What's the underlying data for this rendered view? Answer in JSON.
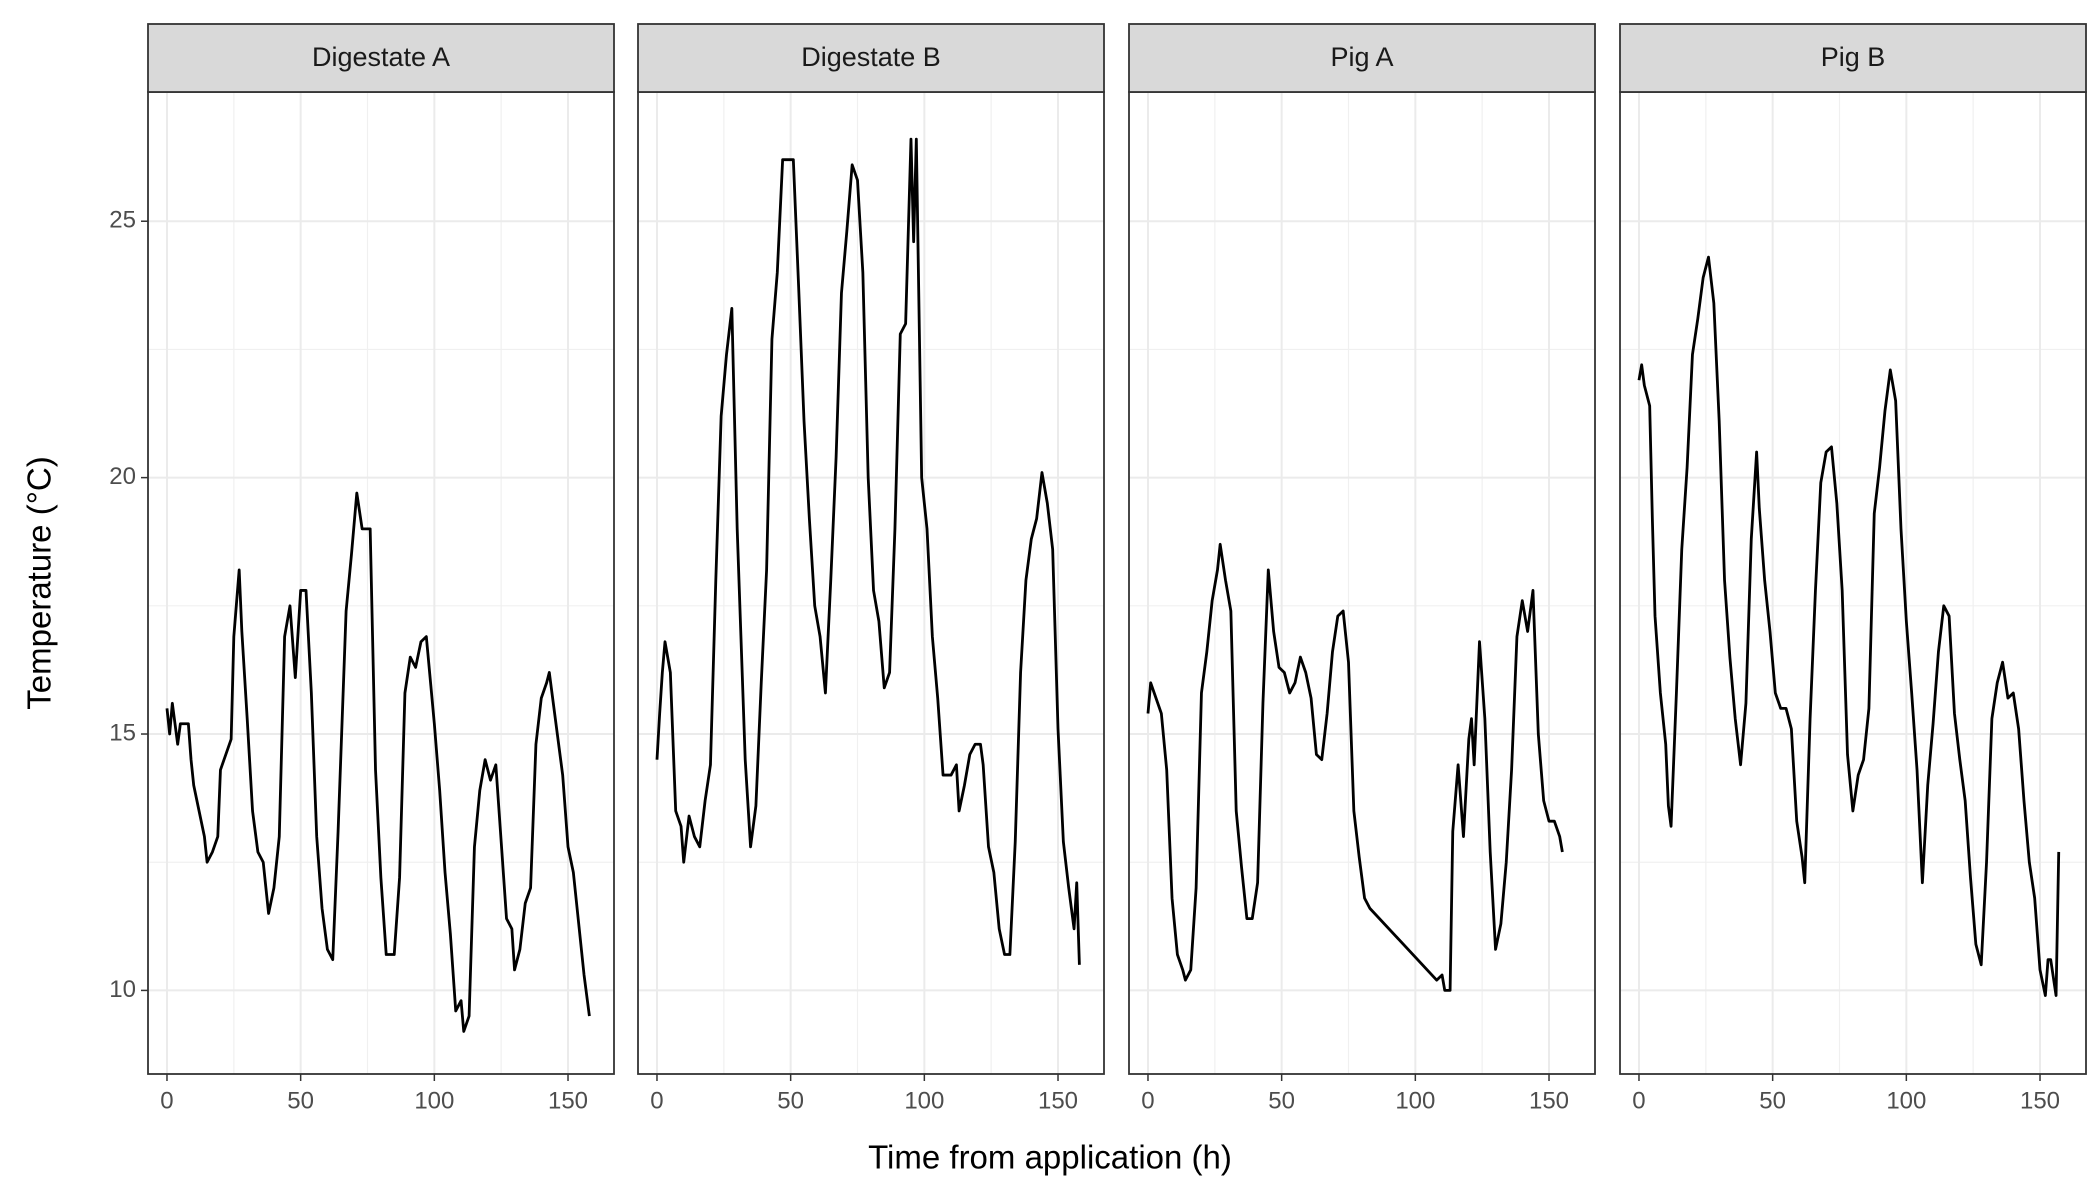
{
  "chart_data": {
    "type": "line",
    "facet": true,
    "x_label": "Time from application (h)",
    "y_label": "Temperature (°C)",
    "xlim": [
      -7.1,
      167.2
    ],
    "ylim": [
      8.37,
      27.52
    ],
    "xticks": [
      0,
      50,
      100,
      150
    ],
    "yticks": [
      10,
      15,
      20,
      25
    ],
    "grid": true,
    "color": "#000000",
    "series": [
      {
        "name": "Digestate A",
        "x": [
          0,
          1,
          2,
          4,
          5,
          8,
          9,
          10,
          12,
          14,
          15,
          17,
          19,
          20,
          22,
          24,
          25,
          27,
          28,
          30,
          32,
          34,
          36,
          38,
          40,
          42,
          44,
          46,
          48,
          50,
          52,
          54,
          56,
          58,
          60,
          62,
          64,
          67,
          69,
          71,
          73,
          76,
          78,
          80,
          82,
          85,
          87,
          89,
          91,
          93,
          95,
          97,
          100,
          102,
          104,
          106,
          108,
          110,
          111,
          113,
          115,
          117,
          119,
          121,
          123,
          125,
          127,
          129,
          130,
          132,
          134,
          136,
          138,
          140,
          142,
          143,
          146,
          148,
          150,
          152,
          154,
          156,
          158
        ],
        "values": [
          15.5,
          15.0,
          15.6,
          14.8,
          15.2,
          15.2,
          14.5,
          14.0,
          13.5,
          13.0,
          12.5,
          12.7,
          13.0,
          14.3,
          14.6,
          14.9,
          16.9,
          18.2,
          17.0,
          15.3,
          13.5,
          12.7,
          12.5,
          11.5,
          12.0,
          13.0,
          16.9,
          17.5,
          16.1,
          17.8,
          17.8,
          15.8,
          13.0,
          11.6,
          10.8,
          10.6,
          13.1,
          17.4,
          18.5,
          19.7,
          19.0,
          19.0,
          14.3,
          12.2,
          10.7,
          10.7,
          12.2,
          15.8,
          16.5,
          16.3,
          16.8,
          16.9,
          15.2,
          13.9,
          12.3,
          11.1,
          9.6,
          9.8,
          9.2,
          9.5,
          12.8,
          13.9,
          14.5,
          14.1,
          14.4,
          12.9,
          11.4,
          11.2,
          10.4,
          10.8,
          11.7,
          12.0,
          14.8,
          15.7,
          16.0,
          16.2,
          15.0,
          14.2,
          12.8,
          12.3,
          11.3,
          10.3,
          9.5
        ]
      },
      {
        "name": "Digestate B",
        "x": [
          0,
          1,
          2,
          3,
          5,
          7,
          9,
          10,
          12,
          14,
          16,
          18,
          20,
          22,
          24,
          26,
          28,
          30,
          33,
          35,
          37,
          39,
          41,
          43,
          45,
          47,
          51,
          53,
          55,
          57,
          59,
          61,
          63,
          65,
          67,
          69,
          71,
          73,
          75,
          77,
          79,
          81,
          83,
          85,
          87,
          89,
          91,
          93,
          95,
          96,
          97,
          99,
          101,
          103,
          105,
          107,
          110,
          112,
          113,
          115,
          117,
          119,
          121,
          122,
          124,
          126,
          128,
          130,
          132,
          134,
          136,
          138,
          140,
          142,
          144,
          146,
          148,
          150,
          152,
          154,
          156,
          157,
          158
        ],
        "values": [
          14.5,
          15.4,
          16.2,
          16.8,
          16.2,
          13.5,
          13.2,
          12.5,
          13.4,
          13.0,
          12.8,
          13.7,
          14.4,
          18.0,
          21.2,
          22.4,
          23.3,
          19.0,
          14.5,
          12.8,
          13.6,
          16.0,
          18.2,
          22.7,
          24.0,
          26.2,
          26.2,
          23.7,
          21.1,
          19.2,
          17.5,
          16.9,
          15.8,
          18.0,
          20.4,
          23.6,
          24.8,
          26.1,
          25.8,
          24.0,
          20.0,
          17.8,
          17.2,
          15.9,
          16.2,
          19.0,
          22.8,
          23.0,
          26.6,
          24.6,
          26.6,
          20.0,
          19.0,
          16.9,
          15.7,
          14.2,
          14.2,
          14.4,
          13.5,
          14.0,
          14.6,
          14.8,
          14.8,
          14.4,
          12.8,
          12.3,
          11.2,
          10.7,
          10.7,
          12.9,
          16.2,
          18.0,
          18.8,
          19.2,
          20.1,
          19.5,
          18.6,
          15.1,
          12.9,
          12.0,
          11.2,
          12.1,
          10.5
        ]
      },
      {
        "name": "Pig A",
        "x": [
          0,
          1,
          3,
          5,
          7,
          9,
          11,
          13,
          14,
          16,
          18,
          20,
          22,
          24,
          26,
          27,
          29,
          31,
          33,
          35,
          37,
          39,
          41,
          43,
          45,
          47,
          49,
          51,
          53,
          55,
          57,
          59,
          61,
          63,
          65,
          67,
          69,
          71,
          73,
          75,
          77,
          79,
          81,
          83,
          108,
          110,
          111,
          113,
          114,
          116,
          118,
          120,
          121,
          122,
          124,
          126,
          128,
          130,
          132,
          134,
          136,
          138,
          140,
          142,
          144,
          146,
          148,
          150,
          152,
          154,
          155
        ],
        "values": [
          15.4,
          16.0,
          15.7,
          15.4,
          14.3,
          11.8,
          10.7,
          10.4,
          10.2,
          10.4,
          12.0,
          15.8,
          16.6,
          17.6,
          18.2,
          18.7,
          18.0,
          17.4,
          13.5,
          12.4,
          11.4,
          11.4,
          12.1,
          15.6,
          18.2,
          17.0,
          16.3,
          16.2,
          15.8,
          16.0,
          16.5,
          16.2,
          15.7,
          14.6,
          14.5,
          15.4,
          16.6,
          17.3,
          17.4,
          16.4,
          13.5,
          12.6,
          11.8,
          11.6,
          10.2,
          10.3,
          10.0,
          10.0,
          13.1,
          14.4,
          13.0,
          14.9,
          15.3,
          14.4,
          16.8,
          15.3,
          12.7,
          10.8,
          11.3,
          12.5,
          14.3,
          16.9,
          17.6,
          17.0,
          17.8,
          15.0,
          13.7,
          13.3,
          13.3,
          13.0,
          12.7
        ]
      },
      {
        "name": "Pig B",
        "x": [
          0,
          1,
          2,
          4,
          5,
          6,
          8,
          10,
          11,
          12,
          14,
          16,
          18,
          20,
          22,
          24,
          26,
          28,
          30,
          32,
          34,
          36,
          38,
          40,
          42,
          44,
          45,
          47,
          49,
          51,
          53,
          55,
          57,
          59,
          61,
          62,
          64,
          66,
          68,
          70,
          72,
          74,
          76,
          78,
          80,
          82,
          84,
          86,
          88,
          90,
          92,
          94,
          96,
          98,
          100,
          102,
          104,
          106,
          108,
          110,
          112,
          114,
          116,
          118,
          120,
          122,
          124,
          126,
          128,
          130,
          132,
          134,
          136,
          138,
          140,
          142,
          144,
          146,
          148,
          150,
          152,
          153,
          154,
          156,
          157
        ],
        "values": [
          21.9,
          22.2,
          21.8,
          21.4,
          19.2,
          17.3,
          15.8,
          14.8,
          13.6,
          13.2,
          15.8,
          18.6,
          20.2,
          22.4,
          23.1,
          23.9,
          24.3,
          23.4,
          21.1,
          18.0,
          16.5,
          15.3,
          14.4,
          15.6,
          18.8,
          20.5,
          19.4,
          18.0,
          17.0,
          15.8,
          15.5,
          15.5,
          15.1,
          13.3,
          12.6,
          12.1,
          15.3,
          17.8,
          19.9,
          20.5,
          20.6,
          19.5,
          17.8,
          14.6,
          13.5,
          14.2,
          14.5,
          15.5,
          19.3,
          20.2,
          21.3,
          22.1,
          21.5,
          19.0,
          17.2,
          15.8,
          14.3,
          12.1,
          14.0,
          15.2,
          16.6,
          17.5,
          17.3,
          15.4,
          14.5,
          13.7,
          12.2,
          10.9,
          10.5,
          12.5,
          15.3,
          16.0,
          16.4,
          15.7,
          15.8,
          15.1,
          13.7,
          12.5,
          11.8,
          10.4,
          9.9,
          10.6,
          10.6,
          9.9,
          12.7
        ]
      }
    ]
  }
}
